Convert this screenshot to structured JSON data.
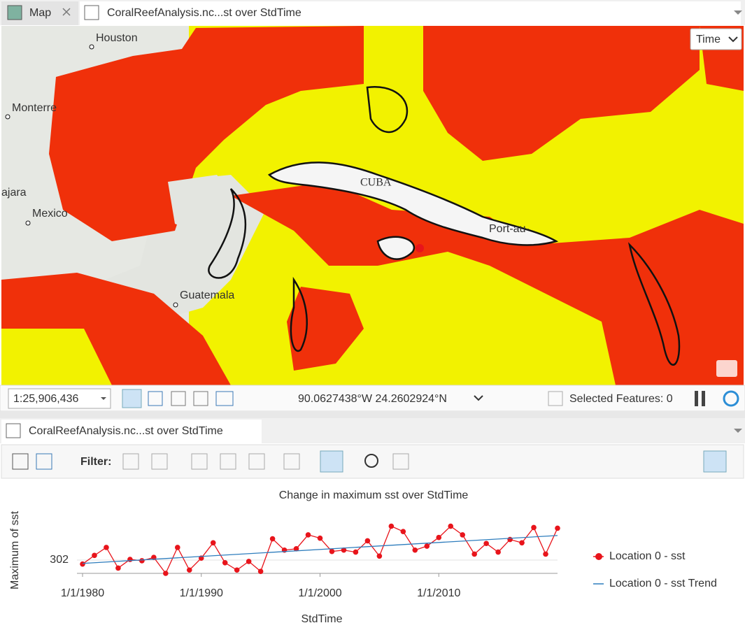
{
  "tabs": [
    "Map",
    "CoralReefAnalysis.nc...st over StdTime"
  ],
  "map": {
    "time_control": "Time",
    "labels": [
      "Houston",
      "Monterre",
      "ajara",
      "Mexico",
      "Guatemala",
      "CUBA",
      "Port-au-"
    ]
  },
  "status_bar": {
    "scale": "1:25,906,436",
    "coordinates": "90.0627438°W 24.2602924°N",
    "selected": "Selected Features: 0"
  },
  "chart_pane": {
    "tab": "CoralReefAnalysis.nc...st over StdTime",
    "filter_label": "Filter:"
  },
  "chart_data": {
    "type": "line",
    "title": "Change in maximum sst over StdTime",
    "x_label": "StdTime",
    "y_label": "Maximum of sst",
    "x": [
      1980,
      1981,
      1982,
      1983,
      1984,
      1985,
      1986,
      1987,
      1988,
      1989,
      1990,
      1991,
      1992,
      1993,
      1994,
      1995,
      1996,
      1997,
      1998,
      1999,
      2000,
      2001,
      2002,
      2003,
      2004,
      2005,
      2006,
      2007,
      2008,
      2009,
      2010,
      2011,
      2012,
      2013,
      2014,
      2015,
      2016,
      2017,
      2018,
      2019,
      2020
    ],
    "series": [
      {
        "name": "Location 0 - sst",
        "color": "#e8141b",
        "markers": true,
        "values": [
          301.94,
          302.07,
          302.19,
          301.88,
          302.01,
          301.99,
          302.04,
          301.8,
          302.19,
          301.85,
          302.03,
          302.26,
          301.96,
          301.85,
          301.98,
          301.83,
          302.32,
          302.15,
          302.17,
          302.38,
          302.33,
          302.13,
          302.15,
          302.12,
          302.29,
          302.06,
          302.51,
          302.43,
          302.15,
          302.21,
          302.34,
          302.51,
          302.38,
          302.09,
          302.25,
          302.12,
          302.31,
          302.26,
          302.49,
          302.09,
          302.48
        ]
      },
      {
        "name": "Location 0 - sst Trend",
        "color": "#2e7dbd",
        "markers": false,
        "x": [
          1980,
          2020
        ],
        "values": [
          301.95,
          302.37
        ]
      }
    ],
    "xlim": [
      1980,
      2020
    ],
    "ylim": [
      301.8,
      302.8
    ],
    "xticks": [
      {
        "value": 1980,
        "label": "1/1/1980"
      },
      {
        "value": 1990,
        "label": "1/1/1990"
      },
      {
        "value": 2000,
        "label": "1/1/2000"
      },
      {
        "value": 2010,
        "label": "1/1/2010"
      }
    ],
    "yticks": [
      302
    ],
    "grid": true
  }
}
